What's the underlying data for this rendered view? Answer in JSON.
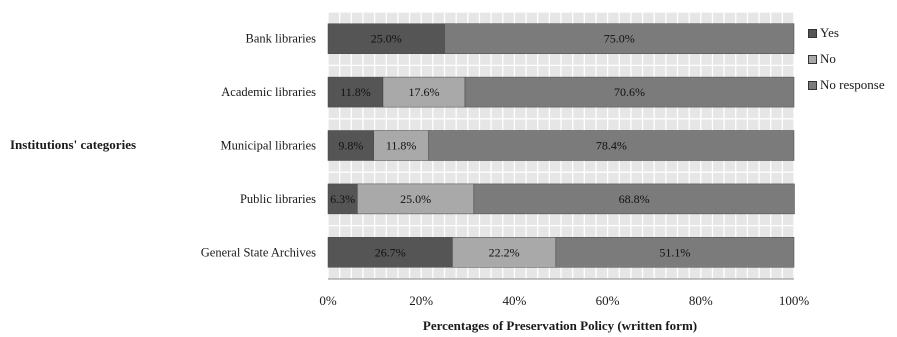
{
  "chart_data": {
    "type": "bar",
    "orientation": "horizontal",
    "stacked": true,
    "categories": [
      "Bank libraries",
      "Academic libraries",
      "Municipal libraries",
      "Public libraries",
      "General State Archives"
    ],
    "series": [
      {
        "name": "Yes",
        "values": [
          25.0,
          11.8,
          9.8,
          6.3,
          26.7
        ],
        "labels": [
          "25.0%",
          "11.8%",
          "9.8%",
          "6.3%",
          "26.7%"
        ],
        "color": "#555555"
      },
      {
        "name": "No",
        "values": [
          0,
          17.6,
          11.8,
          25.0,
          22.2
        ],
        "labels": [
          "",
          "17.6%",
          "11.8%",
          "25.0%",
          "22.2%"
        ],
        "color": "#a9a9a9"
      },
      {
        "name": "No response",
        "values": [
          75.0,
          70.6,
          78.4,
          68.8,
          51.1
        ],
        "labels": [
          "75.0%",
          "70.6%",
          "78.4%",
          "68.8%",
          "51.1%"
        ],
        "color": "#7b7b7b"
      }
    ],
    "xlabel": "Percentages of Preservation Policy (written form)",
    "ylabel": "Institutions' categories",
    "xlim": [
      0,
      100
    ],
    "xticks": [
      "0%",
      "20%",
      "40%",
      "60%",
      "80%",
      "100%"
    ],
    "legend_position": "right",
    "grid": true
  }
}
